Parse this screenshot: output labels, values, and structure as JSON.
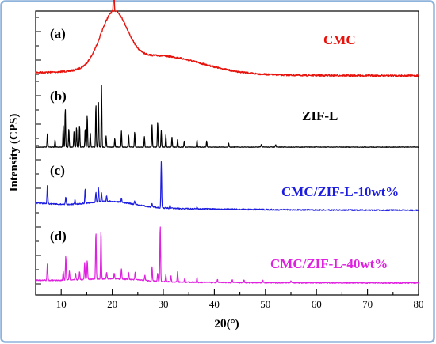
{
  "chart_data": {
    "type": "line",
    "title": "",
    "xlabel": "2θ(°)",
    "ylabel": "Intensity (CPS)",
    "xlim": [
      5,
      80
    ],
    "xticks": [
      "10",
      "20",
      "30",
      "40",
      "50",
      "60",
      "70",
      "80"
    ],
    "xtick_values": [
      10,
      20,
      30,
      40,
      50,
      60,
      70,
      80
    ],
    "y_tick_labels_shown": false,
    "grid": false,
    "stacked_offset": true,
    "series": [
      {
        "panel": "(a)",
        "name": "CMC",
        "color": "#e8120c",
        "peaks": [
          [
            20.3,
            1.0
          ]
        ],
        "broad_hump": true
      },
      {
        "panel": "(b)",
        "name": "ZIF-L",
        "color": "#000000",
        "peaks": [
          [
            7.3,
            0.22
          ],
          [
            8.8,
            0.12
          ],
          [
            10.4,
            0.35
          ],
          [
            10.8,
            0.64
          ],
          [
            11.5,
            0.3
          ],
          [
            12.5,
            0.25
          ],
          [
            13.0,
            0.33
          ],
          [
            13.6,
            0.36
          ],
          [
            14.7,
            0.3
          ],
          [
            15.1,
            0.52
          ],
          [
            15.7,
            0.24
          ],
          [
            16.8,
            0.7
          ],
          [
            17.3,
            0.72
          ],
          [
            17.9,
            1.0
          ],
          [
            18.8,
            0.18
          ],
          [
            20.5,
            0.14
          ],
          [
            21.8,
            0.26
          ],
          [
            23.2,
            0.2
          ],
          [
            24.4,
            0.25
          ],
          [
            26.3,
            0.17
          ],
          [
            27.8,
            0.36
          ],
          [
            28.9,
            0.42
          ],
          [
            29.6,
            0.26
          ],
          [
            30.5,
            0.2
          ],
          [
            31.7,
            0.16
          ],
          [
            32.8,
            0.12
          ],
          [
            34.1,
            0.1
          ],
          [
            36.6,
            0.12
          ],
          [
            38.5,
            0.1
          ],
          [
            42.8,
            0.06
          ],
          [
            49.2,
            0.05
          ],
          [
            52.0,
            0.04
          ]
        ]
      },
      {
        "panel": "(c)",
        "name": "CMC/ZIF-L-10wt%",
        "color": "#1d1de0",
        "peaks": [
          [
            7.3,
            0.4
          ],
          [
            10.9,
            0.16
          ],
          [
            12.7,
            0.1
          ],
          [
            14.7,
            0.33
          ],
          [
            16.8,
            0.22
          ],
          [
            17.3,
            0.32
          ],
          [
            17.9,
            0.2
          ],
          [
            18.9,
            0.12
          ],
          [
            21.8,
            0.08
          ],
          [
            24.4,
            0.07
          ],
          [
            27.8,
            0.08
          ],
          [
            29.6,
            1.0
          ],
          [
            31.3,
            0.07
          ],
          [
            36.6,
            0.04
          ]
        ]
      },
      {
        "panel": "(d)",
        "name": "CMC/ZIF-L-40wt%",
        "color": "#e020e0",
        "peaks": [
          [
            7.3,
            0.3
          ],
          [
            10.4,
            0.15
          ],
          [
            10.9,
            0.42
          ],
          [
            11.6,
            0.15
          ],
          [
            12.8,
            0.12
          ],
          [
            13.6,
            0.15
          ],
          [
            14.6,
            0.3
          ],
          [
            15.1,
            0.34
          ],
          [
            16.8,
            0.82
          ],
          [
            17.8,
            0.85
          ],
          [
            18.9,
            0.12
          ],
          [
            20.4,
            0.1
          ],
          [
            21.8,
            0.18
          ],
          [
            23.2,
            0.12
          ],
          [
            24.5,
            0.14
          ],
          [
            26.4,
            0.09
          ],
          [
            27.8,
            0.24
          ],
          [
            28.9,
            0.14
          ],
          [
            29.4,
            1.0
          ],
          [
            30.5,
            0.12
          ],
          [
            31.5,
            0.1
          ],
          [
            32.8,
            0.18
          ],
          [
            34.2,
            0.07
          ],
          [
            36.6,
            0.08
          ],
          [
            40.6,
            0.05
          ],
          [
            43.5,
            0.05
          ],
          [
            45.8,
            0.05
          ],
          [
            49.5,
            0.04
          ],
          [
            55.0,
            0.04
          ]
        ]
      }
    ]
  }
}
